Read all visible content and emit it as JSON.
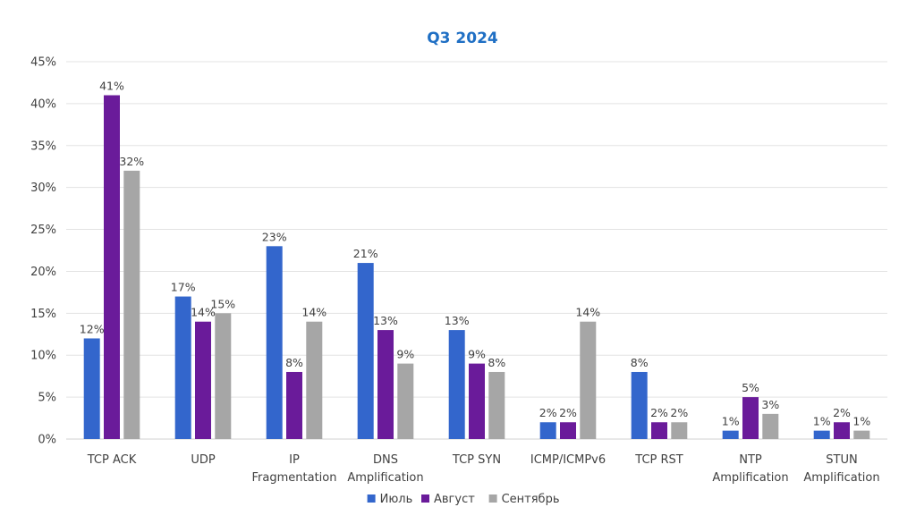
{
  "chart_data": {
    "type": "bar",
    "title": "Q3 2024",
    "categories": [
      [
        "TCP ACK"
      ],
      [
        "UDP"
      ],
      [
        "IP",
        "Fragmentation"
      ],
      [
        "DNS",
        "Amplification"
      ],
      [
        "TCP SYN"
      ],
      [
        "ICMP/ICMPv6"
      ],
      [
        "TCP RST"
      ],
      [
        "NTP",
        "Amplification"
      ],
      [
        "STUN",
        "Amplification"
      ]
    ],
    "series": [
      {
        "name": "Июль",
        "color": "#3366cc",
        "values": [
          12,
          17,
          23,
          21,
          13,
          2,
          8,
          1,
          1
        ]
      },
      {
        "name": "Август",
        "color": "#6a1b9a",
        "values": [
          41,
          14,
          8,
          13,
          9,
          2,
          2,
          5,
          2
        ]
      },
      {
        "name": "Сентябрь",
        "color": "#a6a6a6",
        "values": [
          32,
          15,
          14,
          9,
          8,
          14,
          2,
          3,
          1
        ]
      }
    ],
    "ylim": [
      0,
      45
    ],
    "yticks": [
      0,
      5,
      10,
      15,
      20,
      25,
      30,
      35,
      40,
      45
    ],
    "value_suffix": "%",
    "grid": true,
    "legend": "bottom"
  }
}
